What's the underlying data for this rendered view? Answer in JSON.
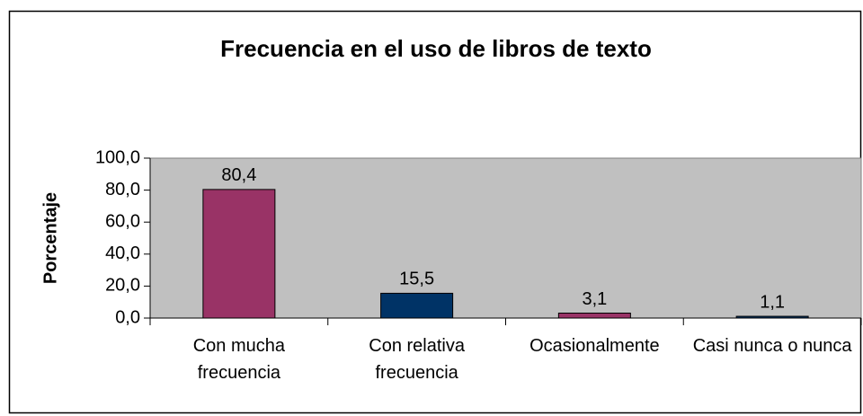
{
  "chart_data": {
    "type": "bar",
    "title": "Frecuencia en el uso de libros de texto",
    "y_label": "Porcentaje",
    "categories": [
      "Con mucha frecuencia",
      "Con relativa frecuencia",
      "Ocasionalmente",
      "Casi nunca o nunca"
    ],
    "values": [
      80.4,
      15.5,
      3.1,
      1.1
    ],
    "value_labels": [
      "80,4",
      "15,5",
      "3,1",
      "1,1"
    ],
    "colors": [
      "#993366",
      "#003366",
      "#993366",
      "#003366"
    ],
    "ylim": [
      0,
      100
    ],
    "yticks": [
      {
        "value": 0,
        "label": "0,0"
      },
      {
        "value": 20,
        "label": "20,0"
      },
      {
        "value": 40,
        "label": "40,0"
      },
      {
        "value": 60,
        "label": "60,0"
      },
      {
        "value": 80,
        "label": "80,0"
      },
      {
        "value": 100,
        "label": "100,0"
      }
    ],
    "grid": false,
    "plot_background": "#c0c0c0"
  }
}
